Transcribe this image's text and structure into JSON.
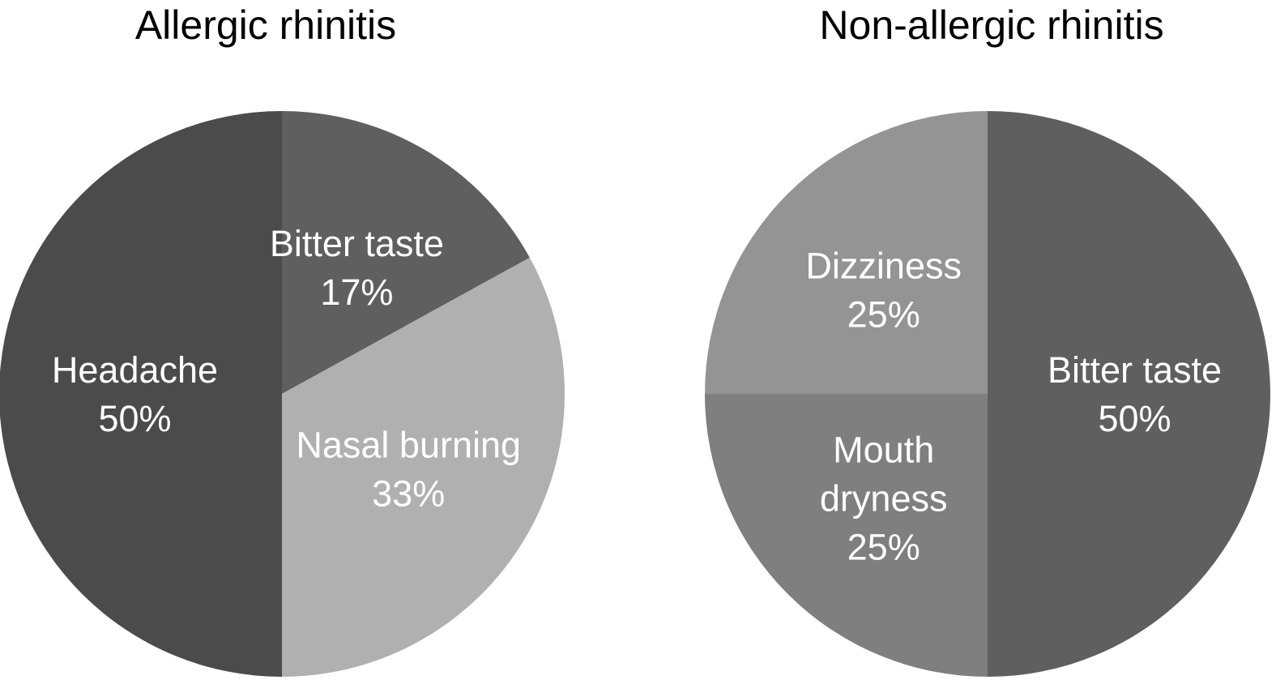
{
  "chart_data": [
    {
      "type": "pie",
      "title": "Allergic rhinitis",
      "start_angle_deg": 0,
      "direction": "clockwise",
      "slices": [
        {
          "label": "Bitter taste",
          "value": 17,
          "value_label": "17%",
          "color": "#5f5f5f",
          "label_lines": [
            "Bitter taste",
            "17%"
          ]
        },
        {
          "label": "Nasal burning",
          "value": 33,
          "value_label": "33%",
          "color": "#b0b0b0",
          "label_lines": [
            "Nasal burning",
            "33%"
          ]
        },
        {
          "label": "Headache",
          "value": 50,
          "value_label": "50%",
          "color": "#4b4b4b",
          "label_lines": [
            "Headache",
            "50%"
          ]
        }
      ]
    },
    {
      "type": "pie",
      "title": "Non-allergic rhinitis",
      "start_angle_deg": 0,
      "direction": "clockwise",
      "slices": [
        {
          "label": "Bitter taste",
          "value": 50,
          "value_label": "50%",
          "color": "#5f5f5f",
          "label_lines": [
            "Bitter taste",
            "50%"
          ]
        },
        {
          "label": "Mouth dryness",
          "value": 25,
          "value_label": "25%",
          "color": "#7f7f7f",
          "label_lines": [
            "Mouth",
            "dryness",
            "25%"
          ]
        },
        {
          "label": "Dizziness",
          "value": 25,
          "value_label": "25%",
          "color": "#949494",
          "label_lines": [
            "Dizziness",
            "25%"
          ]
        }
      ]
    }
  ]
}
